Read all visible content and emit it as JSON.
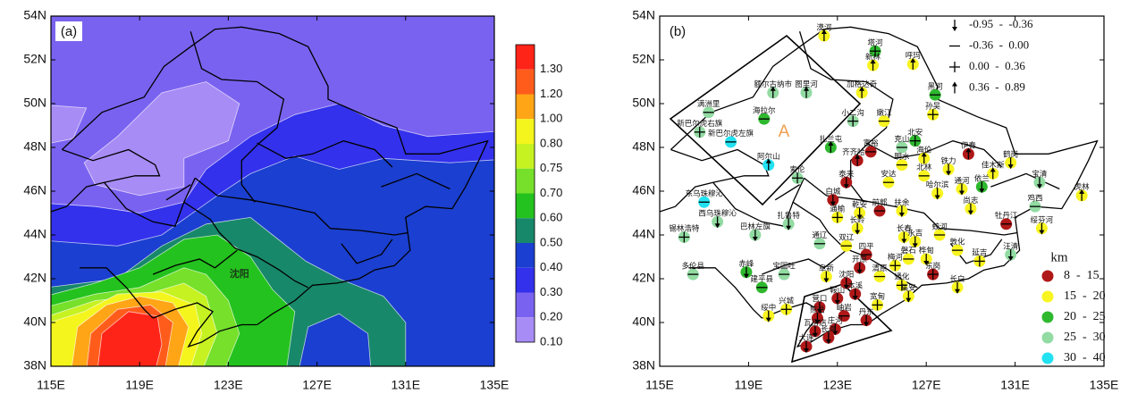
{
  "panels": [
    {
      "label": "(a)",
      "xlim": [
        115,
        135
      ],
      "ylim": [
        38,
        54
      ],
      "xticks": [
        {
          "value": 115,
          "label": "115E"
        },
        {
          "value": 119,
          "label": "119E"
        },
        {
          "value": 123,
          "label": "123E"
        },
        {
          "value": 127,
          "label": "127E"
        },
        {
          "value": 131,
          "label": "131E"
        },
        {
          "value": 135,
          "label": "135E"
        }
      ],
      "yticks": [
        {
          "value": 38,
          "label": "38N"
        },
        {
          "value": 40,
          "label": "40N"
        },
        {
          "value": 42,
          "label": "42N"
        },
        {
          "value": 44,
          "label": "44N"
        },
        {
          "value": 46,
          "label": "46N"
        },
        {
          "value": 48,
          "label": "48N"
        },
        {
          "value": 50,
          "label": "50N"
        },
        {
          "value": 52,
          "label": "52N"
        },
        {
          "value": 54,
          "label": "54N"
        }
      ],
      "city_label": {
        "text": "沈阳",
        "lon": 123.5,
        "lat": 42.2
      },
      "colorbar": [
        {
          "value": 1.3,
          "label": "1.30",
          "color": "#ff2418"
        },
        {
          "value": 1.2,
          "label": "1.20",
          "color": "#ff5c1c"
        },
        {
          "value": 1.0,
          "label": "1.00",
          "color": "#ffa516"
        },
        {
          "value": 0.8,
          "label": "0.80",
          "color": "#f4f51c"
        },
        {
          "value": 0.75,
          "label": "0.75",
          "color": "#c6f222"
        },
        {
          "value": 0.7,
          "label": "0.70",
          "color": "#76e02a"
        },
        {
          "value": 0.6,
          "label": "0.60",
          "color": "#24c21e"
        },
        {
          "value": 0.5,
          "label": "0.50",
          "color": "#18886a"
        },
        {
          "value": 0.4,
          "label": "0.40",
          "color": "#1b3fd0"
        },
        {
          "value": 0.3,
          "label": "0.30",
          "color": "#3331ec"
        },
        {
          "value": 0.2,
          "label": "0.20",
          "color": "#7a62f0"
        },
        {
          "value": 0.1,
          "label": "0.10",
          "color": "#a88cf6"
        }
      ]
    },
    {
      "label": "(b)",
      "xlim": [
        115,
        135
      ],
      "ylim": [
        38,
        54
      ],
      "xticks": [
        {
          "value": 115,
          "label": "115E"
        },
        {
          "value": 119,
          "label": "119E"
        },
        {
          "value": 123,
          "label": "123E"
        },
        {
          "value": 127,
          "label": "127E"
        },
        {
          "value": 131,
          "label": "131E"
        },
        {
          "value": 135,
          "label": "135E"
        }
      ],
      "yticks": [
        {
          "value": 38,
          "label": "38N"
        },
        {
          "value": 40,
          "label": "40N"
        },
        {
          "value": 42,
          "label": "42N"
        },
        {
          "value": 44,
          "label": "44N"
        },
        {
          "value": 46,
          "label": "46N"
        },
        {
          "value": 48,
          "label": "48N"
        },
        {
          "value": 50,
          "label": "50N"
        },
        {
          "value": 52,
          "label": "52N"
        },
        {
          "value": 54,
          "label": "54N"
        }
      ],
      "region_label": "A",
      "trend_legend": [
        "-0.95  -  -0.36",
        "-0.36  -  0.00",
        "0.00  -  0.36",
        "0.36  -  0.89"
      ],
      "size_legend": {
        "title": "km",
        "items": [
          {
            "label": "8  -  15",
            "color": "#b01818"
          },
          {
            "label": "15  -  20",
            "color": "#f8f420"
          },
          {
            "label": "20  -  25",
            "color": "#2eb82e"
          },
          {
            "label": "25  -  30",
            "color": "#92dba2"
          },
          {
            "label": "30  -  40",
            "color": "#22e2f2"
          }
        ]
      },
      "stations": [
        {
          "name": "漠河",
          "lon": 122.4,
          "lat": 53.1,
          "size": 1,
          "trend": 3
        },
        {
          "name": "塔河",
          "lon": 124.7,
          "lat": 52.4,
          "size": 2,
          "trend": 2
        },
        {
          "name": "新林",
          "lon": 124.6,
          "lat": 51.75,
          "size": 1,
          "trend": 3
        },
        {
          "name": "呼玛",
          "lon": 126.4,
          "lat": 51.8,
          "size": 1,
          "trend": 3
        },
        {
          "name": "额尔古纳市",
          "lon": 120.1,
          "lat": 50.5,
          "size": 3,
          "trend": 3
        },
        {
          "name": "图里河",
          "lon": 121.6,
          "lat": 50.5,
          "size": 3,
          "trend": 3
        },
        {
          "name": "加格达奇",
          "lon": 124.1,
          "lat": 50.5,
          "size": 1,
          "trend": 3
        },
        {
          "name": "黑河",
          "lon": 127.4,
          "lat": 50.4,
          "size": 2,
          "trend": 1
        },
        {
          "name": "满洲里",
          "lon": 117.2,
          "lat": 49.6,
          "size": 3,
          "trend": 1
        },
        {
          "name": "海拉尔",
          "lon": 119.7,
          "lat": 49.3,
          "size": 2,
          "trend": 1
        },
        {
          "name": "小二沟",
          "lon": 123.7,
          "lat": 49.2,
          "size": 3,
          "trend": 2
        },
        {
          "name": "嫩江",
          "lon": 125.1,
          "lat": 49.2,
          "size": 1,
          "trend": 1
        },
        {
          "name": "孙吴",
          "lon": 127.3,
          "lat": 49.5,
          "size": 1,
          "trend": 2
        },
        {
          "name": "新巴尔虎右旗",
          "lon": 116.8,
          "lat": 48.7,
          "size": 3,
          "trend": 2
        },
        {
          "name": "新巴尔虎左旗",
          "lon": 118.2,
          "lat": 48.25,
          "size": 4,
          "trend": 1
        },
        {
          "name": "阿尔山",
          "lon": 119.9,
          "lat": 47.2,
          "size": 4,
          "trend": 3
        },
        {
          "name": "扎兰屯",
          "lon": 122.7,
          "lat": 48.0,
          "size": 2,
          "trend": 3
        },
        {
          "name": "克山",
          "lon": 125.9,
          "lat": 48.0,
          "size": 3,
          "trend": 1
        },
        {
          "name": "北安",
          "lon": 126.5,
          "lat": 48.3,
          "size": 2,
          "trend": 2
        },
        {
          "name": "齐齐哈尔",
          "lon": 123.9,
          "lat": 47.4,
          "size": 0,
          "trend": 3
        },
        {
          "name": "富裕",
          "lon": 124.5,
          "lat": 47.8,
          "size": 0,
          "trend": 1
        },
        {
          "name": "海伦",
          "lon": 126.9,
          "lat": 47.5,
          "size": 1,
          "trend": 3
        },
        {
          "name": "明水",
          "lon": 125.9,
          "lat": 47.2,
          "size": 1,
          "trend": 1
        },
        {
          "name": "伊春",
          "lon": 128.9,
          "lat": 47.7,
          "size": 0,
          "trend": 3
        },
        {
          "name": "铁力",
          "lon": 128.0,
          "lat": 47.0,
          "size": 1,
          "trend": 0
        },
        {
          "name": "北林",
          "lon": 126.9,
          "lat": 46.7,
          "size": 1,
          "trend": 1
        },
        {
          "name": "安达",
          "lon": 125.3,
          "lat": 46.4,
          "size": 1,
          "trend": 1
        },
        {
          "name": "鹤岗",
          "lon": 130.8,
          "lat": 47.3,
          "size": 1,
          "trend": 0
        },
        {
          "name": "佳木斯",
          "lon": 130.0,
          "lat": 46.8,
          "size": 1,
          "trend": 3
        },
        {
          "name": "依兰",
          "lon": 129.5,
          "lat": 46.2,
          "size": 2,
          "trend": 0
        },
        {
          "name": "宝清",
          "lon": 132.1,
          "lat": 46.4,
          "size": 3,
          "trend": 0
        },
        {
          "name": "虎林",
          "lon": 134.0,
          "lat": 45.8,
          "size": 1,
          "trend": 3
        },
        {
          "name": "索伦",
          "lon": 121.2,
          "lat": 46.6,
          "size": 3,
          "trend": 2
        },
        {
          "name": "泰来",
          "lon": 123.4,
          "lat": 46.4,
          "size": 0,
          "trend": 0
        },
        {
          "name": "哈尔滨",
          "lon": 127.5,
          "lat": 45.9,
          "size": 1,
          "trend": 0
        },
        {
          "name": "通河",
          "lon": 128.6,
          "lat": 46.1,
          "size": 1,
          "trend": 0
        },
        {
          "name": "东乌珠穆沁",
          "lon": 117.0,
          "lat": 45.5,
          "size": 4,
          "trend": 1
        },
        {
          "name": "白城",
          "lon": 122.8,
          "lat": 45.6,
          "size": 0,
          "trend": 0
        },
        {
          "name": "乾安",
          "lon": 124.0,
          "lat": 45.0,
          "size": 1,
          "trend": 0
        },
        {
          "name": "前郭",
          "lon": 124.9,
          "lat": 45.1,
          "size": 0,
          "trend": 1
        },
        {
          "name": "扶余",
          "lon": 125.9,
          "lat": 45.1,
          "size": 1,
          "trend": 0
        },
        {
          "name": "尚志",
          "lon": 129.0,
          "lat": 45.2,
          "size": 1,
          "trend": 0
        },
        {
          "name": "鸡西",
          "lon": 131.9,
          "lat": 45.3,
          "size": 3,
          "trend": 1
        },
        {
          "name": "牡丹江",
          "lon": 130.6,
          "lat": 44.5,
          "size": 0,
          "trend": 1
        },
        {
          "name": "绥芬河",
          "lon": 132.2,
          "lat": 44.3,
          "size": 1,
          "trend": 0
        },
        {
          "name": "西乌珠穆沁",
          "lon": 117.6,
          "lat": 44.6,
          "size": 3,
          "trend": 0
        },
        {
          "name": "扎鲁特",
          "lon": 120.8,
          "lat": 44.5,
          "size": 3,
          "trend": 0
        },
        {
          "name": "长岭",
          "lon": 123.9,
          "lat": 44.3,
          "size": 1,
          "trend": 0
        },
        {
          "name": "通榆",
          "lon": 123.0,
          "lat": 44.8,
          "size": 1,
          "trend": 2
        },
        {
          "name": "长春",
          "lon": 126.0,
          "lat": 43.9,
          "size": 1,
          "trend": 0
        },
        {
          "name": "锡林浩特",
          "lon": 116.1,
          "lat": 43.9,
          "size": 3,
          "trend": 2
        },
        {
          "name": "巴林左旗",
          "lon": 119.3,
          "lat": 44.0,
          "size": 3,
          "trend": 0
        },
        {
          "name": "通辽",
          "lon": 122.2,
          "lat": 43.6,
          "size": 3,
          "trend": 1
        },
        {
          "name": "双辽",
          "lon": 123.4,
          "lat": 43.5,
          "size": 1,
          "trend": 1
        },
        {
          "name": "四平",
          "lon": 124.3,
          "lat": 43.1,
          "size": 0,
          "trend": 1
        },
        {
          "name": "永吉",
          "lon": 126.5,
          "lat": 43.7,
          "size": 1,
          "trend": 0
        },
        {
          "name": "蛟河",
          "lon": 127.6,
          "lat": 44.0,
          "size": 1,
          "trend": 1
        },
        {
          "name": "敦化",
          "lon": 128.4,
          "lat": 43.3,
          "size": 1,
          "trend": 1
        },
        {
          "name": "汪清",
          "lon": 130.8,
          "lat": 43.1,
          "size": 3,
          "trend": 0
        },
        {
          "name": "延吉",
          "lon": 129.4,
          "lat": 42.8,
          "size": 1,
          "trend": 2
        },
        {
          "name": "磐石",
          "lon": 126.2,
          "lat": 42.9,
          "size": 1,
          "trend": 1
        },
        {
          "name": "桦甸",
          "lon": 127.0,
          "lat": 42.9,
          "size": 1,
          "trend": 0
        },
        {
          "name": "开原",
          "lon": 124.0,
          "lat": 42.5,
          "size": 0,
          "trend": 0
        },
        {
          "name": "梅河",
          "lon": 125.6,
          "lat": 42.6,
          "size": 1,
          "trend": 2
        },
        {
          "name": "多伦县",
          "lon": 116.5,
          "lat": 42.2,
          "size": 3,
          "trend": 1
        },
        {
          "name": "赤峰",
          "lon": 118.9,
          "lat": 42.3,
          "size": 2,
          "trend": 0
        },
        {
          "name": "宝国吐",
          "lon": 120.6,
          "lat": 42.2,
          "size": 3,
          "trend": 1
        },
        {
          "name": "阜新",
          "lon": 122.5,
          "lat": 42.1,
          "size": 1,
          "trend": 0
        },
        {
          "name": "清原",
          "lon": 124.9,
          "lat": 42.1,
          "size": 1,
          "trend": 1
        },
        {
          "name": "东岗",
          "lon": 127.3,
          "lat": 42.2,
          "size": 0,
          "trend": 2
        },
        {
          "name": "通化",
          "lon": 125.9,
          "lat": 41.7,
          "size": 1,
          "trend": 2
        },
        {
          "name": "集安",
          "lon": 126.2,
          "lat": 41.2,
          "size": 1,
          "trend": 0
        },
        {
          "name": "长白",
          "lon": 128.4,
          "lat": 41.6,
          "size": 1,
          "trend": 0
        },
        {
          "name": "沈阳",
          "lon": 123.4,
          "lat": 41.8,
          "size": 0,
          "trend": 0
        },
        {
          "name": "建平县",
          "lon": 119.6,
          "lat": 41.6,
          "size": 2,
          "trend": 1
        },
        {
          "name": "鞍山",
          "lon": 123.0,
          "lat": 41.1,
          "size": 0,
          "trend": 0
        },
        {
          "name": "本溪",
          "lon": 123.8,
          "lat": 41.3,
          "size": 0,
          "trend": 0
        },
        {
          "name": "宽甸",
          "lon": 124.8,
          "lat": 40.8,
          "size": 1,
          "trend": 2
        },
        {
          "name": "兴城",
          "lon": 120.7,
          "lat": 40.6,
          "size": 1,
          "trend": 2
        },
        {
          "name": "绥中",
          "lon": 119.9,
          "lat": 40.3,
          "size": 1,
          "trend": 0
        },
        {
          "name": "营口",
          "lon": 122.2,
          "lat": 40.7,
          "size": 0,
          "trend": 0
        },
        {
          "name": "岫岩",
          "lon": 123.3,
          "lat": 40.3,
          "size": 0,
          "trend": 1
        },
        {
          "name": "丹东",
          "lon": 124.3,
          "lat": 40.1,
          "size": 0,
          "trend": 0
        },
        {
          "name": "熊岳",
          "lon": 122.1,
          "lat": 40.2,
          "size": 0,
          "trend": 0
        },
        {
          "name": "瓦房店",
          "lon": 122.0,
          "lat": 39.6,
          "size": 0,
          "trend": 0
        },
        {
          "name": "庄河",
          "lon": 122.9,
          "lat": 39.7,
          "size": 0,
          "trend": 0
        },
        {
          "name": "长海",
          "lon": 122.6,
          "lat": 39.3,
          "size": 0,
          "trend": 0
        },
        {
          "name": "大连",
          "lon": 121.6,
          "lat": 38.9,
          "size": 0,
          "trend": 0
        }
      ]
    }
  ]
}
